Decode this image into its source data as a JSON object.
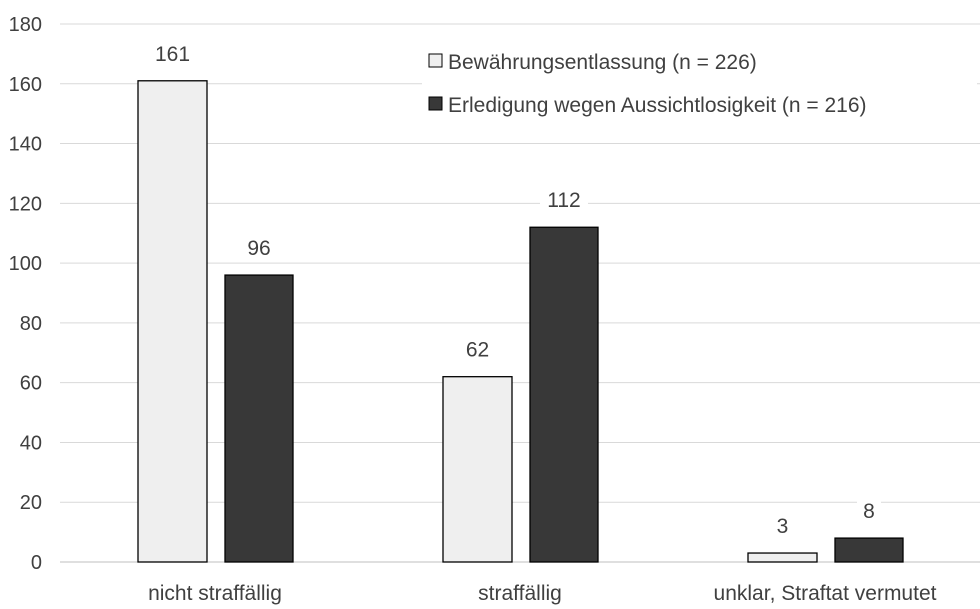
{
  "chart_data": {
    "type": "bar",
    "categories": [
      "nicht straffällig",
      "straffällig",
      "unklar, Straftat vermutet"
    ],
    "series": [
      {
        "name": "Bewährungsentlassung (n = 226)",
        "values": [
          161,
          62,
          3
        ],
        "color": "#efefef"
      },
      {
        "name": "Erledigung wegen Aussichtlosigkeit (n = 216)",
        "values": [
          96,
          112,
          8
        ],
        "color": "#383838"
      }
    ],
    "title": "",
    "xlabel": "",
    "ylabel": "",
    "ylim": [
      0,
      180
    ],
    "yticks": [
      "0",
      "20",
      "40",
      "60",
      "80",
      "100",
      "120",
      "140",
      "160",
      "180"
    ],
    "grid": true,
    "legend": "top-right",
    "data_labels": true
  }
}
